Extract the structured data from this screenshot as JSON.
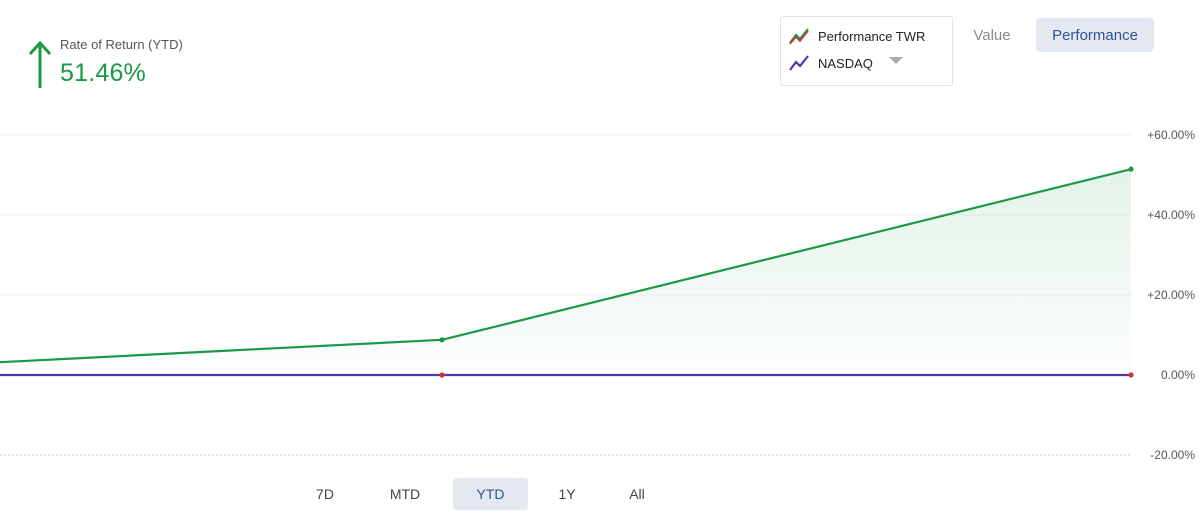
{
  "summary": {
    "label": "Rate of Return (YTD)",
    "value": "51.46%",
    "direction_icon": "arrow-up-icon",
    "positive_color": "#1a9a45"
  },
  "legend": {
    "items": [
      {
        "label": "Performance TWR",
        "icon": "line-chart-icon"
      },
      {
        "label": "NASDAQ",
        "icon": "line-chart-icon"
      }
    ],
    "dropdown_icon": "caret-down-icon"
  },
  "view_toggle": {
    "options": [
      "Value",
      "Performance"
    ],
    "selected": "Performance"
  },
  "periods": {
    "options": [
      "7D",
      "MTD",
      "YTD",
      "1Y",
      "All"
    ],
    "selected": "YTD"
  },
  "chart_data": {
    "type": "area",
    "x_points": 3,
    "ylim": [
      -20,
      60
    ],
    "yticks": [
      60,
      40,
      20,
      0,
      -20
    ],
    "ytick_labels": [
      "+60.00%",
      "+40.00%",
      "+20.00%",
      "0.00%",
      "-20.00%"
    ],
    "y_axis_position": "right",
    "grid": true,
    "series": [
      {
        "name": "Performance TWR",
        "values": [
          3.2,
          8.8,
          51.46
        ],
        "color": "#1a9a45",
        "fill": true
      },
      {
        "name": "NASDAQ",
        "values": [
          0,
          0,
          0
        ],
        "color": "#5533aa",
        "fill": false
      }
    ]
  }
}
